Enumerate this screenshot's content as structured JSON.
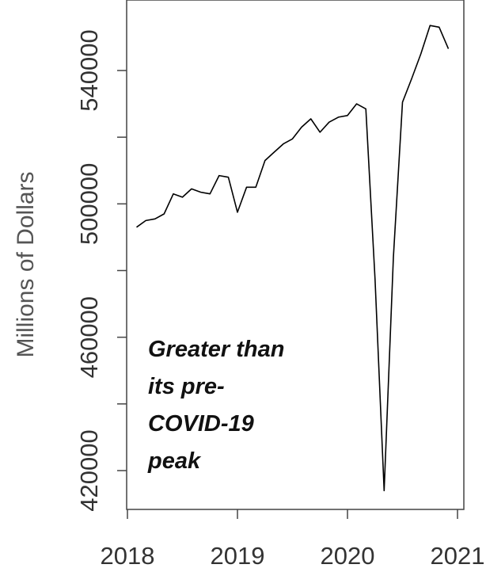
{
  "chart_data": {
    "type": "line",
    "title": "",
    "xlabel": "",
    "ylabel": "Millions of Dollars",
    "xlim": [
      2018,
      2021
    ],
    "ylim": [
      409000,
      561000
    ],
    "x_ticks": [
      "2018",
      "2019",
      "2020",
      "2021"
    ],
    "y_ticks": [
      "420000",
      "460000",
      "500000",
      "540000"
    ],
    "grid": false,
    "line_color": "#000000",
    "annotation": [
      "Greater than",
      "its pre-",
      "COVID-19",
      "peak"
    ],
    "series": [
      {
        "x": [
          2018.083,
          2018.167,
          2018.25,
          2018.333,
          2018.417,
          2018.5,
          2018.583,
          2018.667,
          2018.75,
          2018.833,
          2018.917,
          2019.0,
          2019.083,
          2019.167,
          2019.25,
          2019.333,
          2019.417,
          2019.5,
          2019.583,
          2019.667,
          2019.75,
          2019.833,
          2019.917,
          2020.0,
          2020.083,
          2020.167,
          2020.25,
          2020.333,
          2020.417,
          2020.5,
          2020.583,
          2020.667,
          2020.75,
          2020.833,
          2020.917
        ],
        "y": [
          493000,
          495000,
          495500,
          497000,
          503000,
          502000,
          504500,
          503500,
          503000,
          508500,
          508000,
          497500,
          505000,
          505000,
          513000,
          515500,
          518000,
          519500,
          523000,
          525500,
          521500,
          524500,
          526000,
          526500,
          530000,
          528500,
          477500,
          414000,
          484000,
          530500,
          537500,
          545000,
          553500,
          553000,
          546500
        ]
      }
    ]
  }
}
